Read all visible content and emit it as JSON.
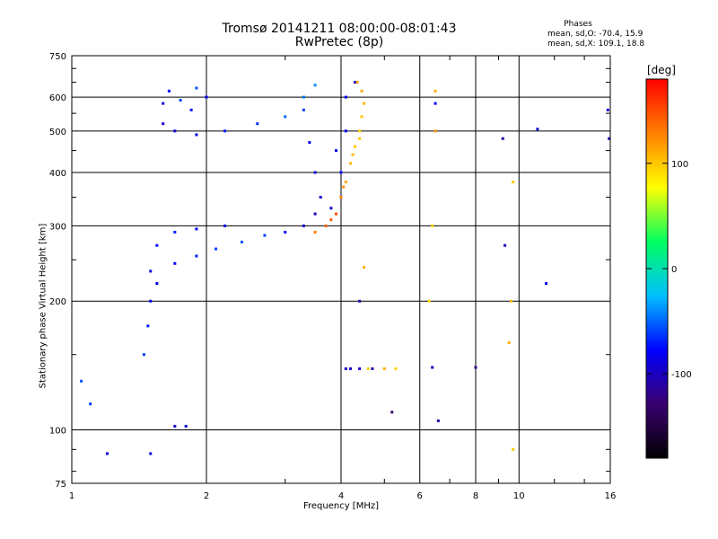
{
  "chart_data": {
    "type": "scatter",
    "title": "Tromsø 20141211 08:00:00-08:01:43",
    "subtitle": "RwPretec (8p)",
    "xlabel": "Frequency [MHz]",
    "ylabel": "Stationary phase Virtual Height [km]",
    "x_scale": "log",
    "y_scale": "log",
    "xlim": [
      1,
      16
    ],
    "ylim": [
      75,
      750
    ],
    "x_ticks": [
      1,
      2,
      4,
      6,
      8,
      10,
      16
    ],
    "y_ticks": [
      75,
      100,
      200,
      300,
      400,
      500,
      600,
      750
    ],
    "grid": true,
    "stats": {
      "title": "Phases",
      "o_mode": "mean, sd,O: -70.4, 15.9",
      "x_mode": "mean, sd,X: 109.1, 18.8"
    },
    "colorbar": {
      "label": "[deg]",
      "min": -180,
      "max": 180,
      "ticks": [
        -100,
        0,
        100
      ],
      "colormap": [
        "#000000",
        "#3a0070",
        "#0000ff",
        "#00c0ff",
        "#00ff60",
        "#ffff00",
        "#ff8000",
        "#ff0000"
      ]
    },
    "series": [
      {
        "kind": "trace",
        "points": [
          [
            1.6,
            580,
            -90
          ],
          [
            1.65,
            620,
            -75
          ],
          [
            1.75,
            590,
            -60
          ],
          [
            1.85,
            560,
            -70
          ],
          [
            1.9,
            630,
            -55
          ],
          [
            2.0,
            600,
            -80
          ],
          [
            1.6,
            520,
            -95
          ],
          [
            1.7,
            500,
            -90
          ],
          [
            1.9,
            490,
            -85
          ],
          [
            2.2,
            500,
            -70
          ],
          [
            2.6,
            520,
            -65
          ],
          [
            3.0,
            540,
            -50
          ],
          [
            3.3,
            600,
            -45
          ],
          [
            3.5,
            640,
            -40
          ],
          [
            3.3,
            560,
            -60
          ],
          [
            3.4,
            470,
            -80
          ],
          [
            3.5,
            400,
            -90
          ],
          [
            3.6,
            350,
            -95
          ],
          [
            3.8,
            330,
            -95
          ],
          [
            3.5,
            320,
            -100
          ],
          [
            3.3,
            300,
            -90
          ],
          [
            3.0,
            290,
            -75
          ],
          [
            2.7,
            285,
            -60
          ],
          [
            2.4,
            275,
            -55
          ],
          [
            2.1,
            265,
            -60
          ],
          [
            1.9,
            255,
            -70
          ],
          [
            1.7,
            245,
            -80
          ],
          [
            1.5,
            235,
            -85
          ],
          [
            1.7,
            290,
            -70
          ],
          [
            1.9,
            295,
            -80
          ],
          [
            2.2,
            300,
            -85
          ],
          [
            1.5,
            200,
            -80
          ],
          [
            1.48,
            175,
            -70
          ],
          [
            1.45,
            150,
            -60
          ],
          [
            1.55,
            270,
            -75
          ],
          [
            1.55,
            220,
            -80
          ],
          [
            1.1,
            115,
            -60
          ],
          [
            1.05,
            130,
            -55
          ],
          [
            1.8,
            102,
            -90
          ],
          [
            1.7,
            102,
            -95
          ],
          [
            1.2,
            88,
            -90
          ],
          [
            1.5,
            88,
            -85
          ],
          [
            4.3,
            650,
            -100
          ],
          [
            4.1,
            600,
            -85
          ],
          [
            4.1,
            500,
            -80
          ],
          [
            3.9,
            450,
            -85
          ],
          [
            4.0,
            400,
            -75
          ],
          [
            4.2,
            139,
            -100
          ],
          [
            4.4,
            139,
            -95
          ],
          [
            4.7,
            139,
            -110
          ]
        ]
      },
      {
        "kind": "trace",
        "points": [
          [
            3.5,
            290,
            130
          ],
          [
            3.7,
            300,
            140
          ],
          [
            3.9,
            320,
            150
          ],
          [
            4.0,
            350,
            130
          ],
          [
            4.1,
            380,
            110
          ],
          [
            4.2,
            420,
            105
          ],
          [
            4.3,
            460,
            100
          ],
          [
            4.4,
            500,
            95
          ],
          [
            4.45,
            540,
            100
          ],
          [
            4.5,
            580,
            105
          ],
          [
            4.45,
            620,
            110
          ],
          [
            4.35,
            650,
            115
          ],
          [
            3.8,
            310,
            145
          ],
          [
            4.05,
            370,
            120
          ],
          [
            4.25,
            440,
            105
          ],
          [
            4.4,
            480,
            100
          ],
          [
            4.6,
            139,
            100
          ],
          [
            5.0,
            139,
            110
          ],
          [
            5.3,
            139,
            95
          ],
          [
            6.5,
            620,
            110
          ],
          [
            6.5,
            500,
            120
          ],
          [
            6.4,
            300,
            95
          ],
          [
            6.3,
            200,
            90
          ],
          [
            9.7,
            380,
            100
          ],
          [
            9.6,
            200,
            105
          ],
          [
            9.7,
            90,
            100
          ],
          [
            9.5,
            160,
            110
          ],
          [
            4.5,
            240,
            110
          ]
        ]
      },
      {
        "kind": "sparse",
        "points": [
          [
            6.5,
            580,
            -80
          ],
          [
            6.4,
            140,
            -100
          ],
          [
            6.6,
            105,
            -110
          ],
          [
            8.0,
            140,
            -120
          ],
          [
            9.2,
            480,
            -110
          ],
          [
            9.3,
            270,
            -100
          ],
          [
            11.0,
            505,
            -90
          ],
          [
            11.5,
            220,
            -80
          ],
          [
            15.9,
            480,
            -100
          ],
          [
            15.8,
            560,
            -90
          ],
          [
            4.1,
            139,
            -100
          ],
          [
            4.4,
            200,
            -110
          ],
          [
            5.2,
            110,
            -130
          ]
        ]
      }
    ]
  }
}
